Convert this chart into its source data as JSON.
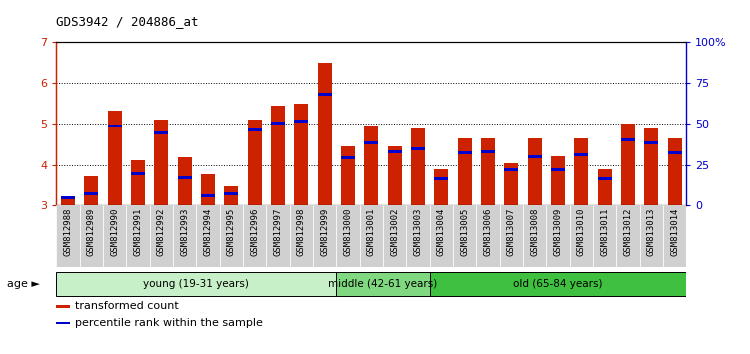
{
  "title": "GDS3942 / 204886_at",
  "samples": [
    "GSM812988",
    "GSM812989",
    "GSM812990",
    "GSM812991",
    "GSM812992",
    "GSM812993",
    "GSM812994",
    "GSM812995",
    "GSM812996",
    "GSM812997",
    "GSM812998",
    "GSM812999",
    "GSM813000",
    "GSM813001",
    "GSM813002",
    "GSM813003",
    "GSM813004",
    "GSM813005",
    "GSM813006",
    "GSM813007",
    "GSM813008",
    "GSM813009",
    "GSM813010",
    "GSM813011",
    "GSM813012",
    "GSM813013",
    "GSM813014"
  ],
  "red_values": [
    3.15,
    3.72,
    5.32,
    4.12,
    5.1,
    4.18,
    3.78,
    3.47,
    5.1,
    5.45,
    5.5,
    6.5,
    4.45,
    4.95,
    4.45,
    4.9,
    3.9,
    4.65,
    4.65,
    4.05,
    4.65,
    4.2,
    4.65,
    3.9,
    5.0,
    4.9,
    4.65
  ],
  "blue_values": [
    3.2,
    3.28,
    4.95,
    3.78,
    4.78,
    3.68,
    3.25,
    3.28,
    4.87,
    5.02,
    5.05,
    5.72,
    4.18,
    4.55,
    4.32,
    4.4,
    3.65,
    4.3,
    4.32,
    3.88,
    4.2,
    3.88,
    4.25,
    3.65,
    4.62,
    4.55,
    4.3
  ],
  "ymin": 3.0,
  "ymax": 7.0,
  "yticks": [
    3,
    4,
    5,
    6,
    7
  ],
  "right_yticks": [
    0,
    25,
    50,
    75,
    100
  ],
  "right_yticklabels": [
    "0",
    "25",
    "50",
    "75",
    "100%"
  ],
  "groups": [
    {
      "label": "young (19-31 years)",
      "start": 0,
      "end": 12,
      "color": "#c8f0c8"
    },
    {
      "label": "middle (42-61 years)",
      "start": 12,
      "end": 16,
      "color": "#80d880"
    },
    {
      "label": "old (65-84 years)",
      "start": 16,
      "end": 27,
      "color": "#40c040"
    }
  ],
  "bar_color": "#cc2200",
  "blue_color": "#0000cc",
  "bar_width": 0.6,
  "left_axis_color": "#cc2200",
  "right_axis_color": "#0000cc",
  "xtick_bg": "#d0d0d0",
  "age_label": "age",
  "legend_items": [
    {
      "color": "#cc2200",
      "label": "transformed count"
    },
    {
      "color": "#0000cc",
      "label": "percentile rank within the sample"
    }
  ]
}
